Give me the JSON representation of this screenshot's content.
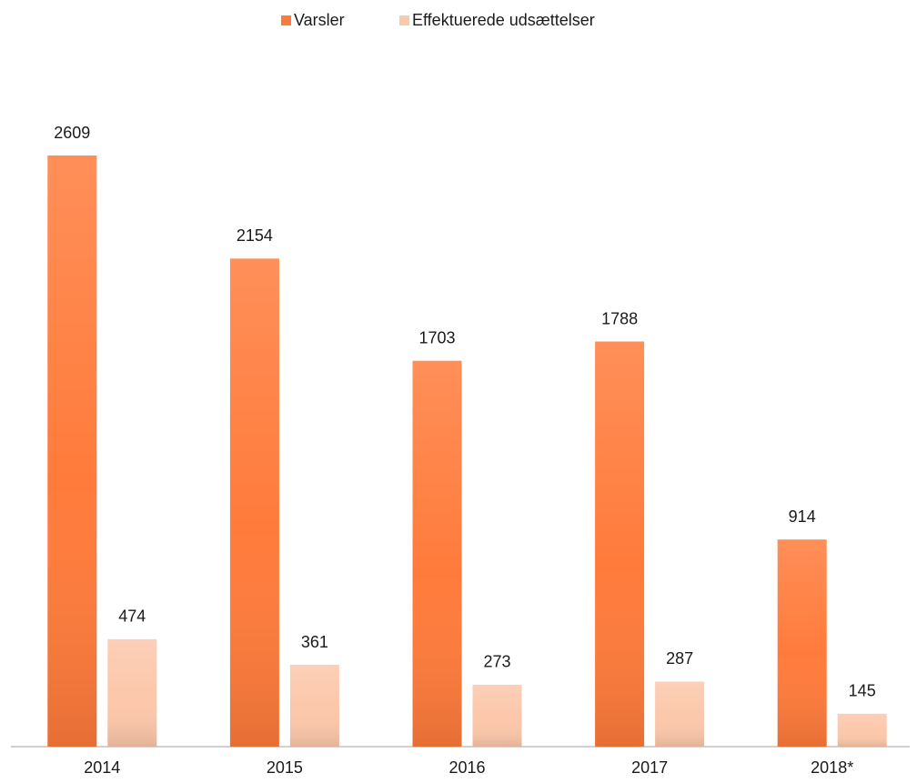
{
  "chart_data": {
    "type": "bar",
    "categories": [
      "2014",
      "2015",
      "2016",
      "2017",
      "2018*"
    ],
    "series": [
      {
        "name": "Varsler",
        "color": "#ff7b3b",
        "values": [
          2609,
          2154,
          1703,
          1788,
          914
        ]
      },
      {
        "name": "Effektuerede udsættelser",
        "color": "#fcc7aa",
        "values": [
          474,
          361,
          273,
          287,
          145
        ]
      }
    ],
    "legend": "top"
  }
}
